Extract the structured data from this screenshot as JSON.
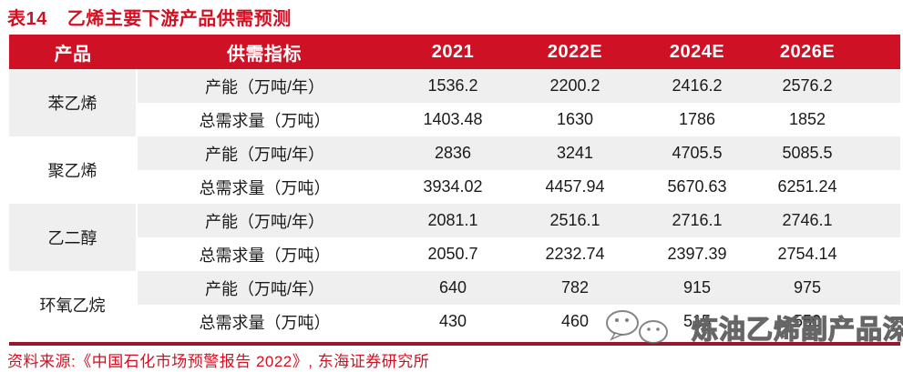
{
  "title": {
    "tag": "表14",
    "text": "乙烯主要下游产品供需预测"
  },
  "table": {
    "header": {
      "product": "产品",
      "indicator": "供需指标",
      "years": [
        "2021",
        "2022E",
        "2024E",
        "2026E"
      ]
    },
    "groups": [
      {
        "product": "苯乙烯",
        "rows": [
          {
            "indicator": "产能（万吨/年）",
            "values": [
              "1536.2",
              "2200.2",
              "2416.2",
              "2576.2"
            ]
          },
          {
            "indicator": "总需求量（万吨）",
            "values": [
              "1403.48",
              "1630",
              "1786",
              "1852"
            ]
          }
        ]
      },
      {
        "product": "聚乙烯",
        "rows": [
          {
            "indicator": "产能（万吨/年）",
            "values": [
              "2836",
              "3241",
              "4705.5",
              "5085.5"
            ]
          },
          {
            "indicator": "总需求量（万吨）",
            "values": [
              "3934.02",
              "4457.94",
              "5670.63",
              "6251.24"
            ]
          }
        ]
      },
      {
        "product": "乙二醇",
        "rows": [
          {
            "indicator": "产能（万吨/年）",
            "values": [
              "2081.1",
              "2516.1",
              "2716.1",
              "2746.1"
            ]
          },
          {
            "indicator": "总需求量（万吨）",
            "values": [
              "2050.7",
              "2232.74",
              "2397.39",
              "2754.14"
            ]
          }
        ]
      },
      {
        "product": "环氧乙烷",
        "rows": [
          {
            "indicator": "产能（万吨/年）",
            "values": [
              "640",
              "782",
              "915",
              "975"
            ]
          },
          {
            "indicator": "总需求量（万吨）",
            "values": [
              "430",
              "460",
              "515",
              "550"
            ]
          }
        ]
      }
    ]
  },
  "footer": {
    "source": "资料来源:《中国石化市场预警报告 2022》, 东海证券研究所"
  },
  "watermark": {
    "text": "炼油乙烯副产品深加工",
    "icon": "wechat-logo-icon"
  },
  "colors": {
    "header_bg": "#cf1126",
    "accent_red": "#d40f22",
    "bottom_rule": "#97182e",
    "row_gray": "#efefef",
    "row_white": "#ffffff",
    "text": "#1a1a1a"
  }
}
